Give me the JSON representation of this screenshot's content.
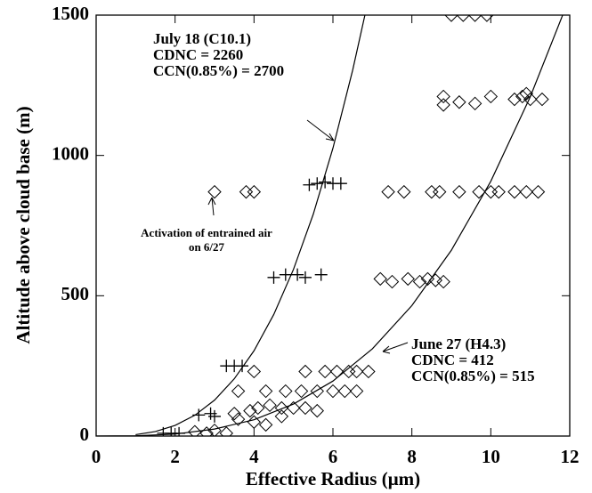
{
  "chart_data": {
    "type": "scatter",
    "x_label": "Effective Radius (μm)",
    "y_label": "Altitude above cloud base (m)",
    "xlim": [
      0,
      12
    ],
    "ylim": [
      0,
      1500
    ],
    "xticks": [
      0,
      2,
      4,
      6,
      8,
      10,
      12
    ],
    "yticks": [
      0,
      500,
      1000,
      1500
    ],
    "annotations": [
      [
        "July 18 (C10.1)",
        "CDNC = 2260",
        "CCN(0.85%) = 2700"
      ],
      [
        "June 27 (H4.3)",
        "CDNC = 412",
        "CCN(0.85%) = 515"
      ],
      [
        "Activation of entrained air",
        "on 6/27"
      ]
    ],
    "series": [
      {
        "marker": "diamond",
        "color": "#000000",
        "x": [
          9.0,
          9.3,
          9.6,
          9.9,
          8.8,
          8.8,
          9.2,
          9.6,
          10.0,
          10.6,
          10.8,
          11.0,
          11.3,
          10.9,
          3.0,
          3.8,
          4.0,
          7.4,
          7.8,
          8.5,
          8.7,
          9.2,
          9.7,
          10.0,
          10.2,
          10.6,
          10.9,
          11.2,
          7.2,
          7.5,
          7.9,
          8.2,
          8.4,
          8.6,
          8.8,
          4.0,
          5.3,
          5.8,
          6.1,
          6.4,
          6.6,
          6.9,
          3.6,
          4.3,
          4.8,
          5.2,
          5.6,
          6.0,
          6.3,
          6.6,
          3.5,
          3.9,
          4.1,
          4.4,
          4.7,
          5.0,
          5.3,
          5.6,
          3.6,
          4.0,
          4.3,
          4.7,
          2.5,
          2.8,
          3.0,
          3.3
        ],
        "values": [
          1500,
          1500,
          1500,
          1500,
          1210,
          1180,
          1190,
          1185,
          1210,
          1200,
          1210,
          1200,
          1200,
          1220,
          870,
          870,
          870,
          870,
          870,
          870,
          870,
          870,
          870,
          870,
          870,
          870,
          870,
          870,
          560,
          550,
          560,
          550,
          560,
          555,
          550,
          230,
          230,
          230,
          230,
          230,
          230,
          230,
          160,
          160,
          160,
          160,
          160,
          160,
          160,
          160,
          80,
          90,
          100,
          110,
          100,
          100,
          100,
          90,
          60,
          50,
          40,
          70,
          15,
          10,
          20,
          10
        ]
      },
      {
        "marker": "plus",
        "color": "#000000",
        "x": [
          1.7,
          1.9,
          2.1,
          2.6,
          2.9,
          3.0,
          3.3,
          3.5,
          3.7,
          4.5,
          4.8,
          5.1,
          5.3,
          5.7,
          5.4,
          5.6,
          5.8,
          6.0,
          6.2
        ],
        "values": [
          10,
          10,
          10,
          75,
          80,
          70,
          250,
          250,
          250,
          565,
          575,
          575,
          565,
          575,
          895,
          900,
          905,
          900,
          900
        ]
      },
      {
        "marker": "line",
        "color": "#000000",
        "x": [
          1,
          1.5,
          2,
          2.5,
          3,
          3.5,
          4,
          4.5,
          5,
          5.5,
          6,
          6.5,
          6.81
        ],
        "values": [
          5,
          16,
          38,
          74,
          128,
          204,
          304,
          433,
          594,
          790,
          1026,
          1304,
          1500
        ]
      },
      {
        "marker": "line",
        "color": "#000000",
        "x": [
          0,
          1,
          2,
          3,
          4,
          5,
          6,
          7,
          8,
          9,
          10,
          11,
          11.82
        ],
        "values": [
          0,
          1,
          7,
          25,
          58,
          114,
          196,
          311,
          465,
          662,
          908,
          1209,
          1500
        ]
      }
    ]
  }
}
